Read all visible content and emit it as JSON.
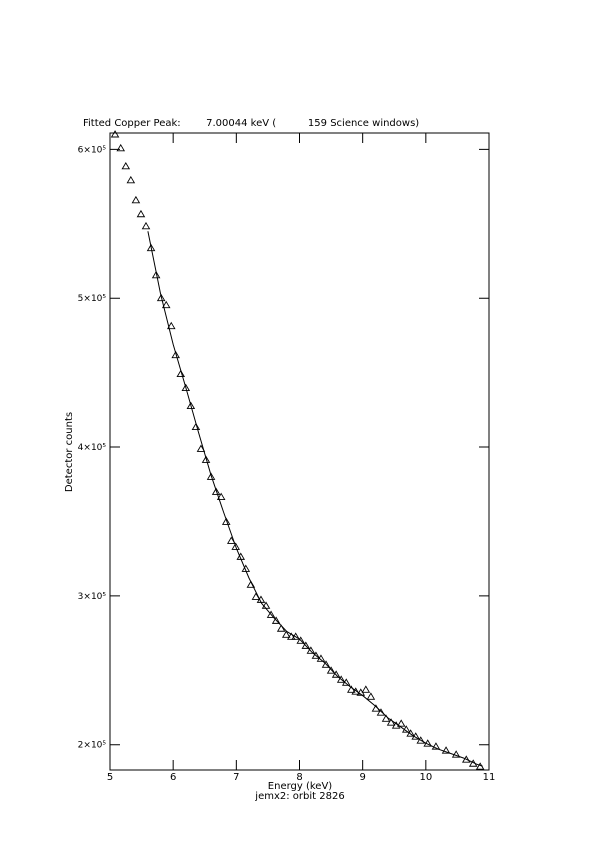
{
  "chart_data": {
    "type": "scatter",
    "title": "Fitted Copper Peak:        7.00044 keV (          159 Science windows)",
    "xlabel": "Energy (keV)",
    "ylabel": "Detector counts",
    "subtitle": "jemx2: orbit 2826",
    "xlim": [
      5,
      11
    ],
    "ylim": [
      183000,
      611000
    ],
    "xticks": [
      5,
      6,
      7,
      8,
      9,
      10,
      11
    ],
    "yticks": [
      {
        "value": 200000,
        "label": "2×10⁵"
      },
      {
        "value": 300000,
        "label": "3×10⁵"
      },
      {
        "value": 400000,
        "label": "4×10⁵"
      },
      {
        "value": 500000,
        "label": "5×10⁵"
      },
      {
        "value": 600000,
        "label": "6×10⁵"
      }
    ],
    "series": [
      {
        "marker": "triangle",
        "color": "#000000",
        "x": [
          5.08,
          5.17,
          5.25,
          5.33,
          5.41,
          5.49,
          5.57,
          5.65,
          5.73,
          5.81,
          5.89,
          5.97,
          6.04,
          6.12,
          6.2,
          6.28,
          6.36,
          6.44,
          6.52,
          6.6,
          6.68,
          6.76,
          6.84,
          6.92,
          6.99,
          7.07,
          7.15,
          7.23,
          7.31,
          7.39,
          7.47,
          7.55,
          7.63,
          7.71,
          7.79,
          7.87,
          7.94,
          8.02,
          8.1,
          8.18,
          8.26,
          8.34,
          8.42,
          8.5,
          8.58,
          8.66,
          8.74,
          8.82,
          8.89,
          8.97,
          9.05,
          9.13,
          9.21,
          9.29,
          9.37,
          9.45,
          9.53,
          9.61,
          9.69,
          9.76,
          9.84,
          9.92,
          10.03,
          10.16,
          10.32,
          10.48,
          10.64,
          10.75,
          10.86
        ],
        "values": [
          610000,
          600700,
          588600,
          579200,
          565800,
          556400,
          548300,
          533600,
          515400,
          500000,
          495300,
          481200,
          461700,
          449000,
          439600,
          427500,
          413400,
          398700,
          391300,
          379900,
          369800,
          366400,
          349700,
          336900,
          332900,
          326200,
          318100,
          307400,
          299300,
          297300,
          293300,
          287200,
          283200,
          277900,
          273800,
          272500,
          272500,
          269800,
          266400,
          263100,
          259700,
          257700,
          253700,
          249700,
          247000,
          243600,
          241600,
          236900,
          235600,
          234900,
          236900,
          232200,
          224200,
          221500,
          217400,
          214800,
          212800,
          214100,
          210100,
          207400,
          205400,
          202700,
          200700,
          198700,
          196000,
          193300,
          189900,
          187200,
          185200
        ]
      },
      {
        "marker": "line",
        "color": "#000000",
        "x": [
          5.6,
          5.8,
          6.0,
          6.2,
          6.4,
          6.6,
          6.8,
          7.0,
          7.2,
          7.4,
          7.6,
          7.8,
          8.0,
          8.2,
          8.4,
          8.6,
          8.8,
          9.0,
          9.2,
          9.4,
          9.6,
          9.8,
          10.0,
          10.2,
          10.4,
          10.6,
          10.8,
          10.9
        ],
        "values": [
          545000,
          503000,
          469000,
          440000,
          410000,
          381000,
          356000,
          332000,
          312000,
          295000,
          285000,
          276000,
          271000,
          262000,
          255000,
          246000,
          239000,
          233000,
          226000,
          218000,
          212000,
          206000,
          201000,
          197000,
          194000,
          191000,
          187000,
          185500
        ]
      }
    ]
  }
}
